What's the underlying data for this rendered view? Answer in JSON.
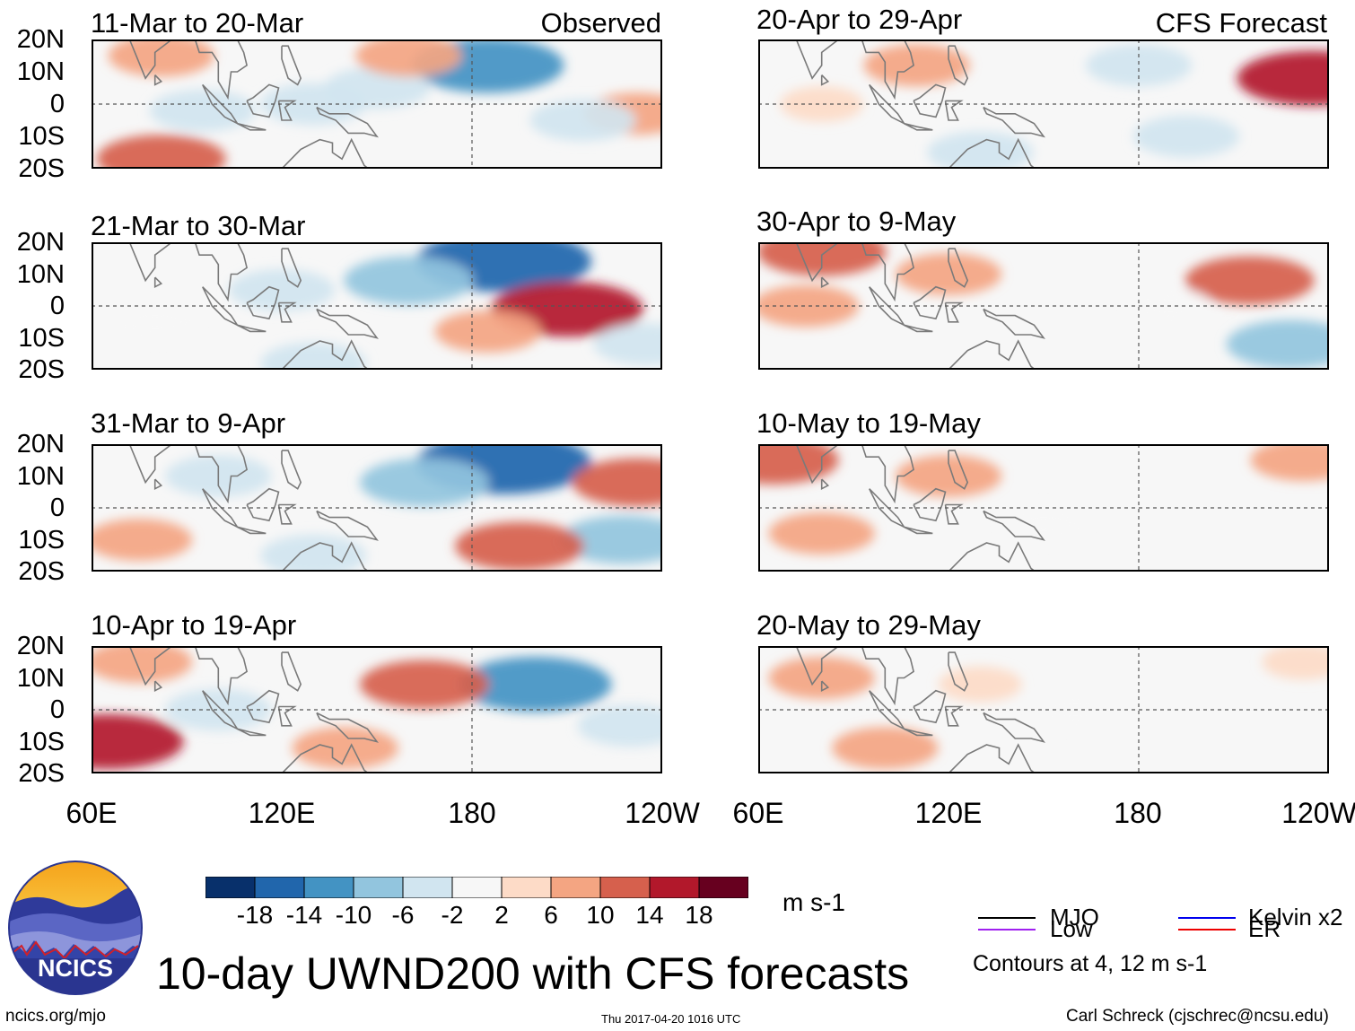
{
  "header": {
    "left_tag": "Observed",
    "right_tag": "CFS Forecast"
  },
  "axes": {
    "lat_labels": [
      "20N",
      "10N",
      "0",
      "10S",
      "20S"
    ],
    "lon_labels": [
      "60E",
      "120E",
      "180",
      "120W"
    ]
  },
  "panels": [
    {
      "title": "11-Mar to 20-Mar"
    },
    {
      "title": "21-Mar to 30-Mar"
    },
    {
      "title": "31-Mar to 9-Apr"
    },
    {
      "title": "10-Apr to 19-Apr"
    },
    {
      "title": "20-Apr to 29-Apr"
    },
    {
      "title": "30-Apr to 9-May"
    },
    {
      "title": "10-May to 19-May"
    },
    {
      "title": "20-May to 29-May"
    }
  ],
  "colorbar": {
    "labels": [
      "-18",
      "-14",
      "-10",
      "-6",
      "-2",
      "2",
      "6",
      "10",
      "14",
      "18"
    ],
    "colors": [
      "#08306b",
      "#2166ac",
      "#4393c3",
      "#92c5de",
      "#d1e5f0",
      "#f7f7f7",
      "#fddbc7",
      "#f4a582",
      "#d6604d",
      "#b2182b",
      "#67001f"
    ],
    "units": "m s-1"
  },
  "legend": {
    "items": [
      {
        "label": "MJO",
        "color": "#000000"
      },
      {
        "label": "Kelvin x2",
        "color": "#0000ee"
      },
      {
        "label": "Low",
        "color": "#a020f0"
      },
      {
        "label": "ER",
        "color": "#ee0000"
      }
    ],
    "note": "Contours at 4, 12 m s-1"
  },
  "title": "10-day UWND200 with CFS forecasts",
  "footer": {
    "left": "ncics.org/mjo",
    "center": "Thu 2017-04-20 1016 UTC",
    "right": "Carl Schreck (cjschrec@ncsu.edu)"
  },
  "logo": {
    "text": "NCICS"
  },
  "chart_data": {
    "type": "heatmap",
    "variable": "200-hPa zonal wind anomaly, 10-day mean (m s-1)",
    "x_range": [
      60,
      240
    ],
    "y_range": [
      -20,
      20
    ],
    "x_ticks": [
      "60E",
      "120E",
      "180",
      "120W"
    ],
    "y_ticks": [
      "20N",
      "10N",
      "0",
      "10S",
      "20S"
    ],
    "contour_levels": [
      4,
      12
    ],
    "levels": [
      -18,
      -14,
      -10,
      -6,
      -2,
      2,
      6,
      10,
      14,
      18
    ],
    "panels": [
      {
        "title": "11-Mar to 20-Mar",
        "source": "Observed",
        "features": [
          {
            "lon": 185,
            "lat": 12,
            "value": -14
          },
          {
            "lon": 150,
            "lat": 5,
            "value": -6
          },
          {
            "lon": 95,
            "lat": -2,
            "value": -6
          },
          {
            "lon": 130,
            "lat": 0,
            "value": -6
          },
          {
            "lon": 82,
            "lat": 15,
            "value": 6
          },
          {
            "lon": 160,
            "lat": 15,
            "value": 6
          },
          {
            "lon": 82,
            "lat": -17,
            "value": 10
          },
          {
            "lon": 232,
            "lat": -3,
            "value": 6
          },
          {
            "lon": 215,
            "lat": -5,
            "value": -6
          }
        ]
      },
      {
        "title": "21-Mar to 30-Mar",
        "source": "Observed",
        "features": [
          {
            "lon": 190,
            "lat": 14,
            "value": -18
          },
          {
            "lon": 160,
            "lat": 8,
            "value": -10
          },
          {
            "lon": 120,
            "lat": 5,
            "value": -6
          },
          {
            "lon": 210,
            "lat": -1,
            "value": 14
          },
          {
            "lon": 185,
            "lat": -8,
            "value": 6
          },
          {
            "lon": 235,
            "lat": -12,
            "value": -6
          },
          {
            "lon": 130,
            "lat": -18,
            "value": -6
          },
          {
            "lon": 80,
            "lat": -5,
            "value": -2
          }
        ]
      },
      {
        "title": "31-Mar to 9-Apr",
        "source": "Observed",
        "features": [
          {
            "lon": 190,
            "lat": 14,
            "value": -18
          },
          {
            "lon": 165,
            "lat": 8,
            "value": -10
          },
          {
            "lon": 100,
            "lat": 10,
            "value": -6
          },
          {
            "lon": 228,
            "lat": -10,
            "value": -10
          },
          {
            "lon": 232,
            "lat": 8,
            "value": 10
          },
          {
            "lon": 195,
            "lat": -12,
            "value": 10
          },
          {
            "lon": 130,
            "lat": -15,
            "value": -6
          },
          {
            "lon": 75,
            "lat": -10,
            "value": 6
          }
        ]
      },
      {
        "title": "10-Apr to 19-Apr",
        "source": "Observed",
        "features": [
          {
            "lon": 200,
            "lat": 8,
            "value": -14
          },
          {
            "lon": 165,
            "lat": 8,
            "value": 10
          },
          {
            "lon": 65,
            "lat": -10,
            "value": 14
          },
          {
            "lon": 75,
            "lat": 15,
            "value": 6
          },
          {
            "lon": 100,
            "lat": 0,
            "value": -6
          },
          {
            "lon": 140,
            "lat": -12,
            "value": 6
          },
          {
            "lon": 230,
            "lat": -5,
            "value": -6
          }
        ]
      },
      {
        "title": "20-Apr to 29-Apr",
        "source": "CFS Forecast",
        "features": [
          {
            "lon": 235,
            "lat": 8,
            "value": 14
          },
          {
            "lon": 180,
            "lat": 12,
            "value": -6
          },
          {
            "lon": 110,
            "lat": 12,
            "value": 6
          },
          {
            "lon": 130,
            "lat": -15,
            "value": -6
          },
          {
            "lon": 195,
            "lat": -10,
            "value": -6
          },
          {
            "lon": 80,
            "lat": 0,
            "value": 2
          }
        ]
      },
      {
        "title": "30-Apr to 9-May",
        "source": "CFS Forecast",
        "features": [
          {
            "lon": 215,
            "lat": 8,
            "value": 10
          },
          {
            "lon": 75,
            "lat": 0,
            "value": 6
          },
          {
            "lon": 228,
            "lat": -12,
            "value": -10
          },
          {
            "lon": 190,
            "lat": 0,
            "value": -2
          },
          {
            "lon": 120,
            "lat": 10,
            "value": 6
          },
          {
            "lon": 80,
            "lat": 17,
            "value": 10
          }
        ]
      },
      {
        "title": "10-May to 19-May",
        "source": "CFS Forecast",
        "features": [
          {
            "lon": 65,
            "lat": 15,
            "value": 10
          },
          {
            "lon": 80,
            "lat": -8,
            "value": 6
          },
          {
            "lon": 120,
            "lat": 10,
            "value": 6
          },
          {
            "lon": 150,
            "lat": -5,
            "value": -2
          },
          {
            "lon": 232,
            "lat": 15,
            "value": 6
          }
        ]
      },
      {
        "title": "20-May to 29-May",
        "source": "CFS Forecast",
        "features": [
          {
            "lon": 80,
            "lat": 10,
            "value": 6
          },
          {
            "lon": 100,
            "lat": -12,
            "value": 6
          },
          {
            "lon": 130,
            "lat": 8,
            "value": 2
          },
          {
            "lon": 160,
            "lat": 0,
            "value": -2
          },
          {
            "lon": 232,
            "lat": 15,
            "value": 2
          }
        ]
      }
    ]
  }
}
